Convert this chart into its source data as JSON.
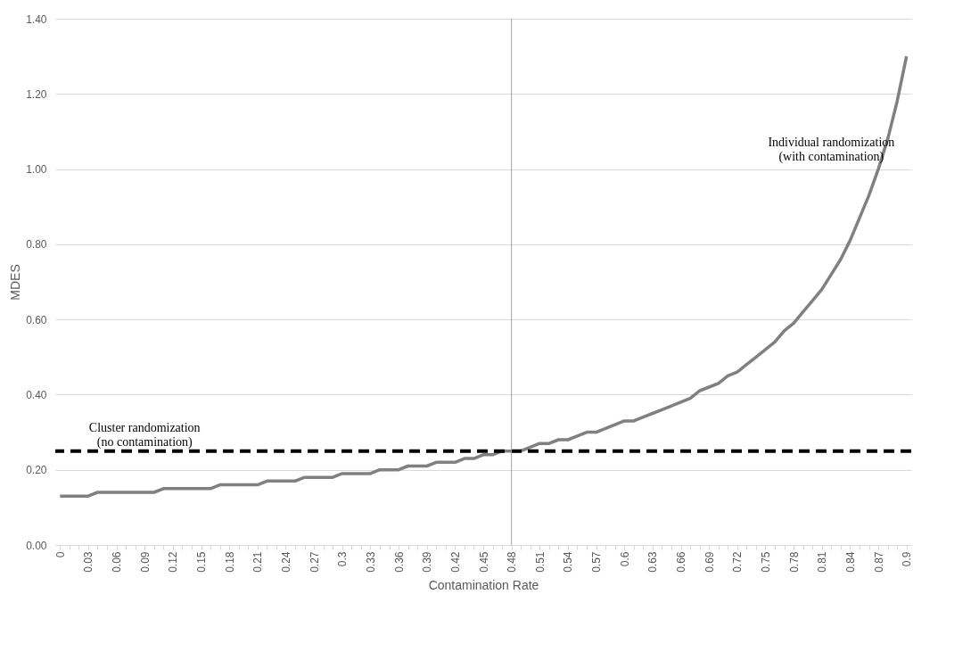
{
  "chart_data": {
    "type": "line",
    "xlabel": "Contamination Rate",
    "ylabel": "MDES",
    "categories": [
      "0",
      null,
      null,
      "0.03",
      null,
      null,
      "0.06",
      null,
      null,
      "0.09",
      null,
      null,
      "0.12",
      null,
      null,
      "0.15",
      null,
      null,
      "0.18",
      null,
      null,
      "0.21",
      null,
      null,
      "0.24",
      null,
      null,
      "0.27",
      null,
      null,
      "0.3",
      null,
      null,
      "0.33",
      null,
      null,
      "0.36",
      null,
      null,
      "0.39",
      null,
      null,
      "0.42",
      null,
      null,
      "0.45",
      null,
      null,
      "0.48",
      null,
      null,
      "0.51",
      null,
      null,
      "0.54",
      null,
      null,
      "0.57",
      null,
      null,
      "0.6",
      null,
      null,
      "0.63",
      null,
      null,
      "0.66",
      null,
      null,
      "0.69",
      null,
      null,
      "0.72",
      null,
      null,
      "0.75",
      null,
      null,
      "0.78",
      null,
      null,
      "0.81",
      null,
      null,
      "0.84",
      null,
      null,
      "0.87",
      null,
      null,
      "0.9"
    ],
    "series": [
      {
        "color": "#808080",
        "values": [
          0.13,
          0.13,
          0.13,
          0.13,
          0.14,
          0.14,
          0.14,
          0.14,
          0.14,
          0.14,
          0.14,
          0.15,
          0.15,
          0.15,
          0.15,
          0.15,
          0.15,
          0.16,
          0.16,
          0.16,
          0.16,
          0.16,
          0.17,
          0.17,
          0.17,
          0.17,
          0.18,
          0.18,
          0.18,
          0.18,
          0.19,
          0.19,
          0.19,
          0.19,
          0.2,
          0.2,
          0.2,
          0.21,
          0.21,
          0.21,
          0.22,
          0.22,
          0.22,
          0.23,
          0.23,
          0.24,
          0.24,
          0.25,
          0.25,
          0.25,
          0.26,
          0.27,
          0.27,
          0.28,
          0.28,
          0.29,
          0.3,
          0.3,
          0.31,
          0.32,
          0.33,
          0.33,
          0.34,
          0.35,
          0.36,
          0.37,
          0.38,
          0.39,
          0.41,
          0.42,
          0.43,
          0.45,
          0.46,
          0.48,
          0.5,
          0.52,
          0.54,
          0.57,
          0.59,
          0.62,
          0.65,
          0.68,
          0.72,
          0.76,
          0.81,
          0.87,
          0.93,
          1.0,
          1.08,
          1.18,
          1.3
        ]
      }
    ],
    "ylim": [
      0,
      1.4
    ],
    "yticks": [
      {
        "value": 0,
        "label": "0.00"
      },
      {
        "value": 0.2,
        "label": "0.20"
      },
      {
        "value": 0.4,
        "label": "0.40"
      },
      {
        "value": 0.6,
        "label": "0.60"
      },
      {
        "value": 0.8,
        "label": "0.80"
      },
      {
        "value": 1.0,
        "label": "1.00"
      },
      {
        "value": 1.2,
        "label": "1.20"
      },
      {
        "value": 1.4,
        "label": "1.40"
      }
    ],
    "grid": "y",
    "line_style": "solid",
    "marker": "none",
    "ref_lines": [
      {
        "axis": "y",
        "value": 0.25,
        "color": "#000000",
        "line_style": "dashed"
      },
      {
        "axis": "x",
        "value": "0.48",
        "color": "#a6a6a6",
        "line_style": "solid"
      }
    ],
    "annotations": [
      "Individual randomization\n(with contamination)",
      "Cluster randomization\n(no contamination)"
    ]
  }
}
